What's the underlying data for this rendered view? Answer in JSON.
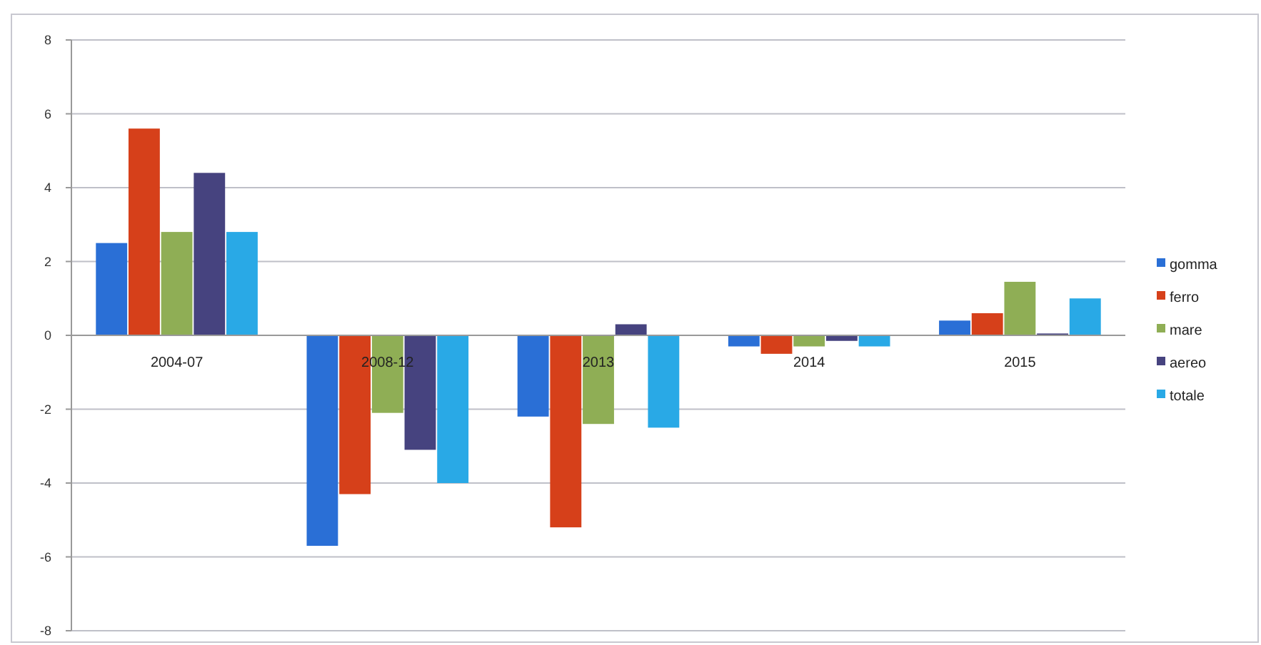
{
  "chart_data": {
    "type": "bar",
    "categories": [
      "2004-07",
      "2008-12",
      "2013",
      "2014",
      "2015"
    ],
    "series": [
      {
        "name": "gomma",
        "color": "#2a6fd6",
        "values": [
          2.5,
          -5.7,
          -2.2,
          -0.3,
          0.4
        ]
      },
      {
        "name": "ferro",
        "color": "#d6401a",
        "values": [
          5.6,
          -4.3,
          -5.2,
          -0.5,
          0.6
        ]
      },
      {
        "name": "mare",
        "color": "#8fae55",
        "values": [
          2.8,
          -2.1,
          -2.4,
          -0.3,
          1.45
        ]
      },
      {
        "name": "aereo",
        "color": "#46437f",
        "values": [
          4.4,
          -3.1,
          0.3,
          -0.15,
          0.05
        ]
      },
      {
        "name": "totale",
        "color": "#29a9e6",
        "values": [
          2.8,
          -4.0,
          -2.5,
          -0.3,
          1.0
        ]
      }
    ],
    "ylim": [
      -8,
      8
    ],
    "yticks": [
      -8,
      -6,
      -4,
      -2,
      0,
      2,
      4,
      6,
      8
    ],
    "grid": "y",
    "legend": "right"
  }
}
